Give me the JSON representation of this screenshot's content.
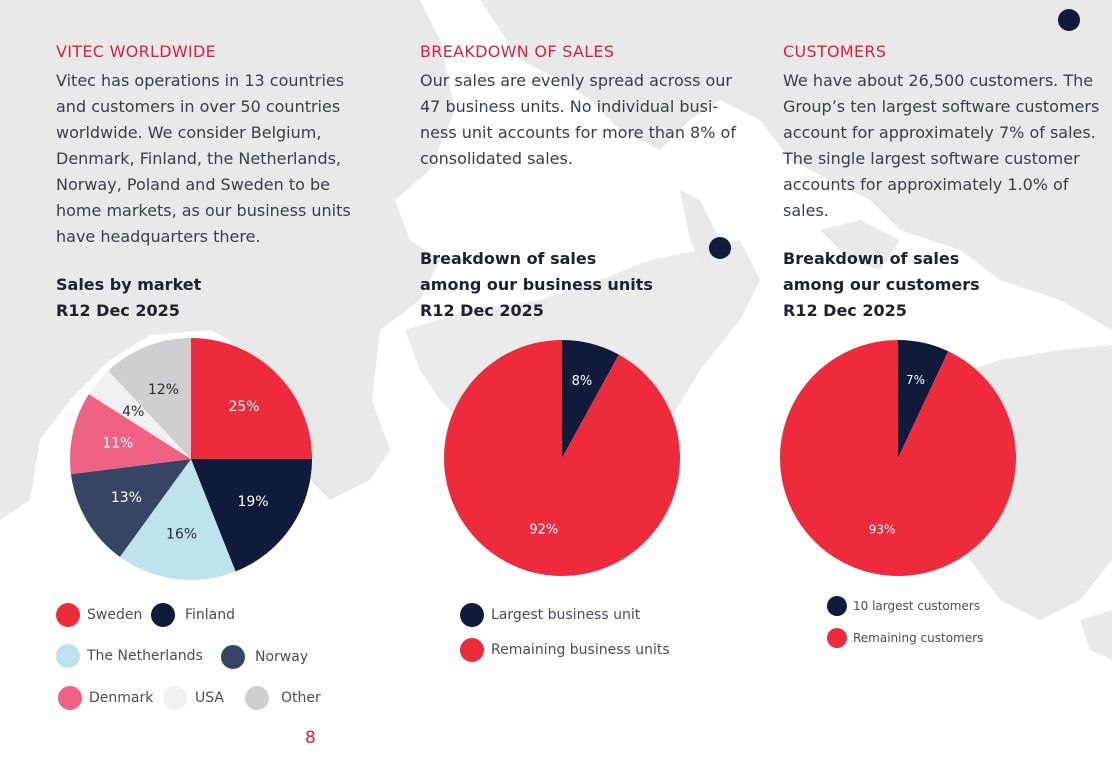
{
  "colors": {
    "red": "#ee2a3d",
    "navy": "#101a3a",
    "slate": "#374464",
    "light_blue": "#bde3ee",
    "pink": "#f06186",
    "usa_gray": "#f1f1f1",
    "other_gray": "#cfcfd2",
    "accent": "#d91f3c",
    "map": "#e9e9ea"
  },
  "sections": {
    "worldwide": {
      "heading": "VITEC WORLDWIDE",
      "body": "Vitec has operations in 13 countries and customers in over 50 countries worldwide. We consider Belgium, Denmark, Finland, the Netherlands, Norway, Poland and Sweden to be home markets, as our business units have headquarters there."
    },
    "sales": {
      "heading": "BREAKDOWN OF SALES",
      "body": "Our sales are evenly spread across our 47 business units. No individual busi-ness unit accounts for more than 8% of consolidated sales."
    },
    "customers": {
      "heading": "CUSTOMERS",
      "body": "We have about 26,500 customers. The Group’s ten largest software customers account for approximately 7% of sales. The single largest software customer accounts for approximately 1.0% of sales."
    }
  },
  "chart_data": [
    {
      "type": "pie",
      "title_lines": [
        "Sales by market",
        "R12 Dec 2025"
      ],
      "slices": [
        {
          "label": "Sweden",
          "value": 25,
          "display": "25%",
          "color": "#ee2a3d",
          "text_color": "#ffffff"
        },
        {
          "label": "Finland",
          "value": 19,
          "display": "19%",
          "color": "#101a3a",
          "text_color": "#ffffff"
        },
        {
          "label": "The Netherlands",
          "value": 16,
          "display": "16%",
          "color": "#bde3ee",
          "text_color": "#2a2d3a"
        },
        {
          "label": "Norway",
          "value": 13,
          "display": "13%",
          "color": "#374464",
          "text_color": "#ffffff"
        },
        {
          "label": "Denmark",
          "value": 11,
          "display": "11%",
          "color": "#f06186",
          "text_color": "#ffffff"
        },
        {
          "label": "USA",
          "value": 4,
          "display": "4%",
          "color": "#f1f1f1",
          "text_color": "#2a2d3a"
        },
        {
          "label": "Other",
          "value": 12,
          "display": "12%",
          "color": "#cfcfd2",
          "text_color": "#2a2d3a"
        }
      ]
    },
    {
      "type": "pie",
      "title_lines": [
        "Breakdown of sales",
        "among our business units",
        "R12 Dec 2025"
      ],
      "slices": [
        {
          "label": "Largest business unit",
          "value": 8,
          "display": "8%",
          "color": "#101a3a",
          "text_color": "#ffffff"
        },
        {
          "label": "Remaining business units",
          "value": 92,
          "display": "92%",
          "color": "#ee2a3d",
          "text_color": "#ffffff"
        }
      ]
    },
    {
      "type": "pie",
      "title_lines": [
        "Breakdown of sales",
        "among our customers",
        "R12 Dec 2025"
      ],
      "slices": [
        {
          "label": "10 largest customers",
          "value": 7,
          "display": "7%",
          "color": "#101a3a",
          "text_color": "#ffffff"
        },
        {
          "label": "Remaining customers",
          "value": 93,
          "display": "93%",
          "color": "#ee2a3d",
          "text_color": "#ffffff"
        }
      ]
    }
  ],
  "page_number": "8"
}
